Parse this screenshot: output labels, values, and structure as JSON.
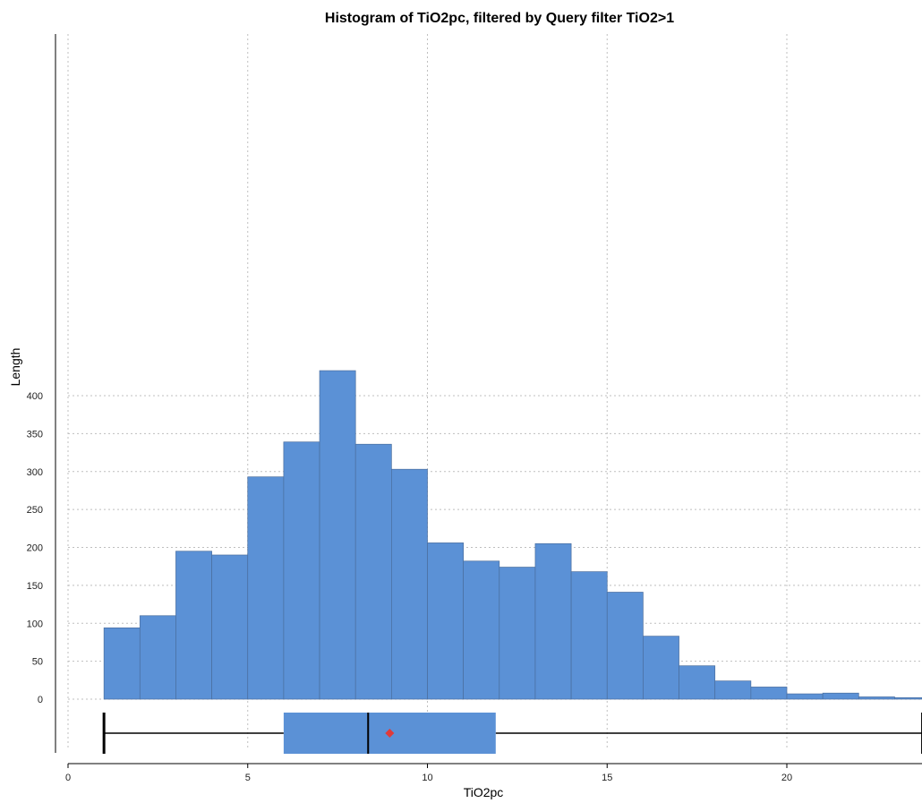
{
  "chart_data": {
    "type": "bar",
    "title": "Histogram of TiO2pc, filtered by Query filter TiO2>1",
    "xlabel": "TiO2pc",
    "ylabel": "Length",
    "xlim": [
      0,
      23.8
    ],
    "ylim": [
      0,
      440
    ],
    "x_ticks": [
      0,
      5,
      10,
      15,
      20
    ],
    "y_ticks": [
      0,
      50,
      100,
      150,
      200,
      250,
      300,
      350,
      400
    ],
    "grid": true,
    "bin_width": 1,
    "bins": [
      {
        "x0": 1,
        "x1": 2,
        "count": 94
      },
      {
        "x0": 2,
        "x1": 3,
        "count": 110
      },
      {
        "x0": 3,
        "x1": 4,
        "count": 195
      },
      {
        "x0": 4,
        "x1": 5,
        "count": 190
      },
      {
        "x0": 5,
        "x1": 6,
        "count": 293
      },
      {
        "x0": 6,
        "x1": 7,
        "count": 339
      },
      {
        "x0": 7,
        "x1": 8,
        "count": 433
      },
      {
        "x0": 8,
        "x1": 9,
        "count": 336
      },
      {
        "x0": 9,
        "x1": 10,
        "count": 303
      },
      {
        "x0": 10,
        "x1": 11,
        "count": 206
      },
      {
        "x0": 11,
        "x1": 12,
        "count": 182
      },
      {
        "x0": 12,
        "x1": 13,
        "count": 174
      },
      {
        "x0": 13,
        "x1": 14,
        "count": 205
      },
      {
        "x0": 14,
        "x1": 15,
        "count": 168
      },
      {
        "x0": 15,
        "x1": 16,
        "count": 141
      },
      {
        "x0": 16,
        "x1": 17,
        "count": 83
      },
      {
        "x0": 17,
        "x1": 18,
        "count": 44
      },
      {
        "x0": 18,
        "x1": 19,
        "count": 24
      },
      {
        "x0": 19,
        "x1": 20,
        "count": 16
      },
      {
        "x0": 20,
        "x1": 21,
        "count": 7
      },
      {
        "x0": 21,
        "x1": 22,
        "count": 8
      },
      {
        "x0": 22,
        "x1": 23,
        "count": 3
      },
      {
        "x0": 23,
        "x1": 24,
        "count": 2
      }
    ],
    "boxplot": {
      "min": 1.0,
      "q1": 6.0,
      "median": 8.35,
      "mean": 8.95,
      "q3": 11.9,
      "max": 23.8
    },
    "bar_color": "#5b91d6",
    "mean_marker_color": "#e03a3a"
  }
}
